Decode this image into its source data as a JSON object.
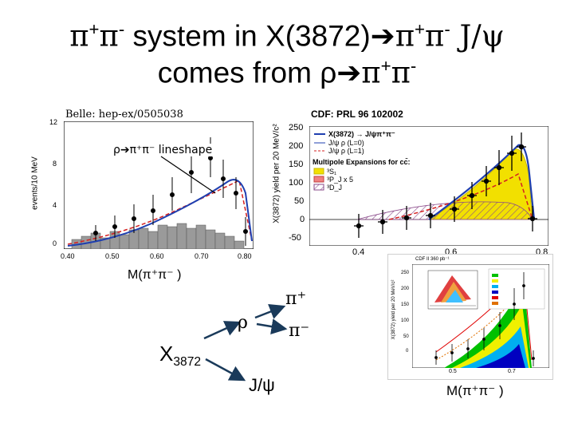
{
  "slide": {
    "title_line1_parts": [
      "π",
      "+",
      "π",
      "-",
      " system in X(3872)",
      "➔",
      "π",
      "+",
      "π",
      "-",
      " J/ψ"
    ],
    "title_line2_parts": [
      "comes from ρ",
      "➔",
      "π",
      "+",
      "π",
      "-"
    ]
  },
  "belle": {
    "ref": "Belle: hep-ex/0505038",
    "ylabel": "events/10 MeV",
    "yticks": [
      "12",
      "8",
      "4",
      "0"
    ],
    "xticks": [
      "0.40",
      "0.50",
      "0.60",
      "0.70",
      "0.80"
    ],
    "annotation": "ρ➔π⁺π⁻ lineshape",
    "colors": {
      "curve": "#1f3fb0",
      "dashed": "#d42020",
      "hist": "#888888"
    }
  },
  "cdf": {
    "ref": "CDF: PRL 96 102002",
    "ylabel": "X(3872) yield per 20 MeV/c²",
    "yticks": [
      "250",
      "200",
      "150",
      "100",
      "50",
      "0",
      "-50"
    ],
    "xticks": [
      "0.4",
      "0.6",
      "0.8"
    ],
    "legend": [
      "X(3872) → J/ψπ⁺π⁻",
      "J/ψ ρ (L=0)",
      "J/ψ ρ (L=1)",
      "Multipole Expansions for cc̄:",
      "³S₁",
      "³P_J x 5",
      "³D_J"
    ],
    "colors": {
      "curve": "#1f3fb0",
      "yellow": "#f2e000",
      "dashed": "#d42020",
      "hatch": "#8a4a8a"
    }
  },
  "inset": {
    "ref": "CDF II 360 pb⁻¹",
    "ylabel": "X(3872) yield per 20 MeV/c²",
    "yticks": [
      "250",
      "200",
      "150",
      "100",
      "50",
      "0"
    ],
    "xticks": [
      "0.5",
      "0.7"
    ],
    "colors": [
      "#00c000",
      "#f0f000",
      "#00b0f0",
      "#0000c0",
      "#e00000",
      "#e07000"
    ]
  },
  "diagram": {
    "m_label": "M(π⁺π⁻ )",
    "x_label_main": "X",
    "x_label_sub": "3872",
    "rho": "ρ",
    "pi_plus": "π⁺",
    "pi_minus": "π⁻",
    "jpsi": "J/ψ",
    "m_label_right": "M(π⁺π⁻ )"
  }
}
